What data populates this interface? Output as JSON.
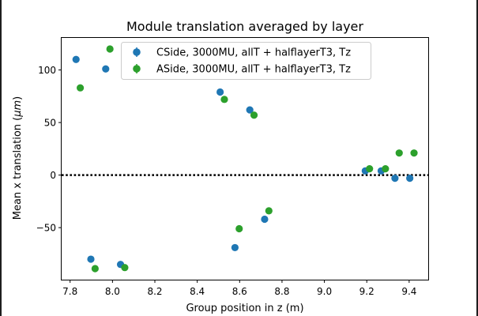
{
  "chart_data": {
    "type": "scatter",
    "title": "Module translation averaged by layer",
    "xlabel": "Group position in z (m)",
    "ylabel": "Mean x translation (μm)",
    "xlim": [
      7.76,
      9.49
    ],
    "ylim": [
      -99.5,
      130.5
    ],
    "x_ticks": [
      7.8,
      8.0,
      8.2,
      8.4,
      8.6,
      8.8,
      9.0,
      9.2,
      9.4
    ],
    "x_tick_labels": [
      "7.8",
      "8.0",
      "8.2",
      "8.4",
      "8.6",
      "8.8",
      "9.0",
      "9.2",
      "9.4"
    ],
    "y_ticks": [
      100,
      50,
      0,
      -50
    ],
    "y_tick_labels": [
      "100",
      "50",
      "0",
      "−50"
    ],
    "reference_line": 0,
    "grid": false,
    "legend_position": "top-center",
    "series": [
      {
        "name": "CSide, 3000MU, allT + halflayerT3, Tz",
        "color": "#1f77b4",
        "x": [
          7.828,
          7.968,
          7.898,
          8.038,
          8.508,
          8.648,
          8.578,
          8.718,
          9.193,
          9.268,
          9.333,
          9.403
        ],
        "y": [
          110,
          101,
          -80,
          -85,
          79,
          62,
          -69,
          -42,
          4,
          4,
          -3,
          -3
        ]
      },
      {
        "name": "ASide, 3000MU, allT + halflayerT3, Tz",
        "color": "#2ca02c",
        "x": [
          7.848,
          7.988,
          7.918,
          8.058,
          8.528,
          8.668,
          8.598,
          8.738,
          9.213,
          9.288,
          9.353,
          9.423
        ],
        "y": [
          83,
          120,
          -89,
          -88,
          72,
          57,
          -51,
          -34,
          6,
          6,
          21,
          21
        ]
      }
    ]
  }
}
